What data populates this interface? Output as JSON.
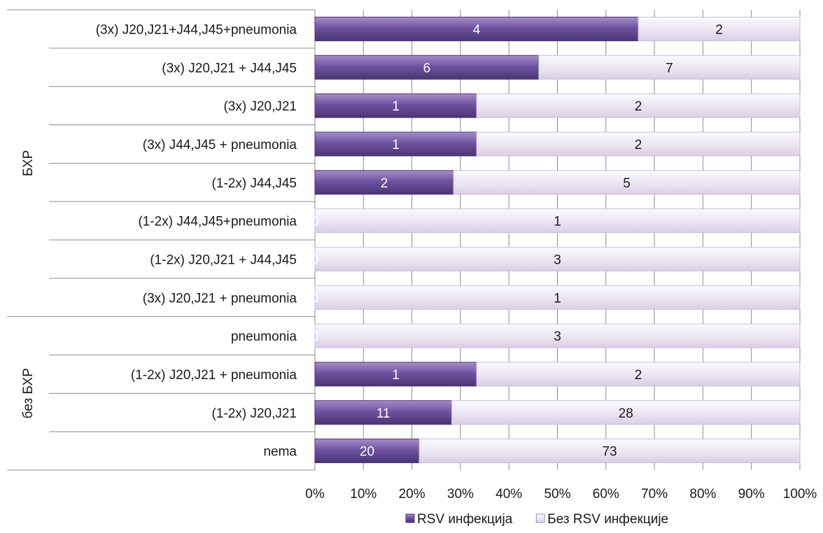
{
  "chart_data": {
    "type": "bar",
    "orientation": "horizontal",
    "stacked": "percent",
    "categories": [
      "(3x) J20,J21+J44,J45+pneumonia",
      "(3x) J20,J21 + J44,J45",
      "(3x) J20,J21",
      "(3x) J44,J45 + pneumonia",
      "(1-2x) J44,J45",
      "(1-2x) J44,J45+pneumonia",
      "(1-2x) J20,J21 + J44,J45",
      "(3x) J20,J21 + pneumonia",
      "pneumonia",
      "(1-2x) J20,J21 + pneumonia",
      "(1-2x) J20,J21",
      "nema"
    ],
    "groups": [
      {
        "label": "БХР",
        "categories": [
          0,
          1,
          2,
          3,
          4,
          5,
          6,
          7
        ]
      },
      {
        "label": "без БХР",
        "categories": [
          8,
          9,
          10,
          11
        ]
      }
    ],
    "series": [
      {
        "name": "RSV инфекција",
        "color": "#6b4f96",
        "values": [
          4,
          6,
          1,
          1,
          2,
          0,
          0,
          0,
          0,
          1,
          11,
          20
        ]
      },
      {
        "name": "Без RSV инфекције",
        "color": "#ece6f3",
        "values": [
          2,
          7,
          2,
          2,
          5,
          1,
          3,
          1,
          3,
          2,
          28,
          73
        ]
      }
    ],
    "xlim": [
      0,
      100
    ],
    "x_ticks": [
      "0%",
      "10%",
      "20%",
      "30%",
      "40%",
      "50%",
      "60%",
      "70%",
      "80%",
      "90%",
      "100%"
    ],
    "grid": true,
    "legend_position": "bottom"
  }
}
